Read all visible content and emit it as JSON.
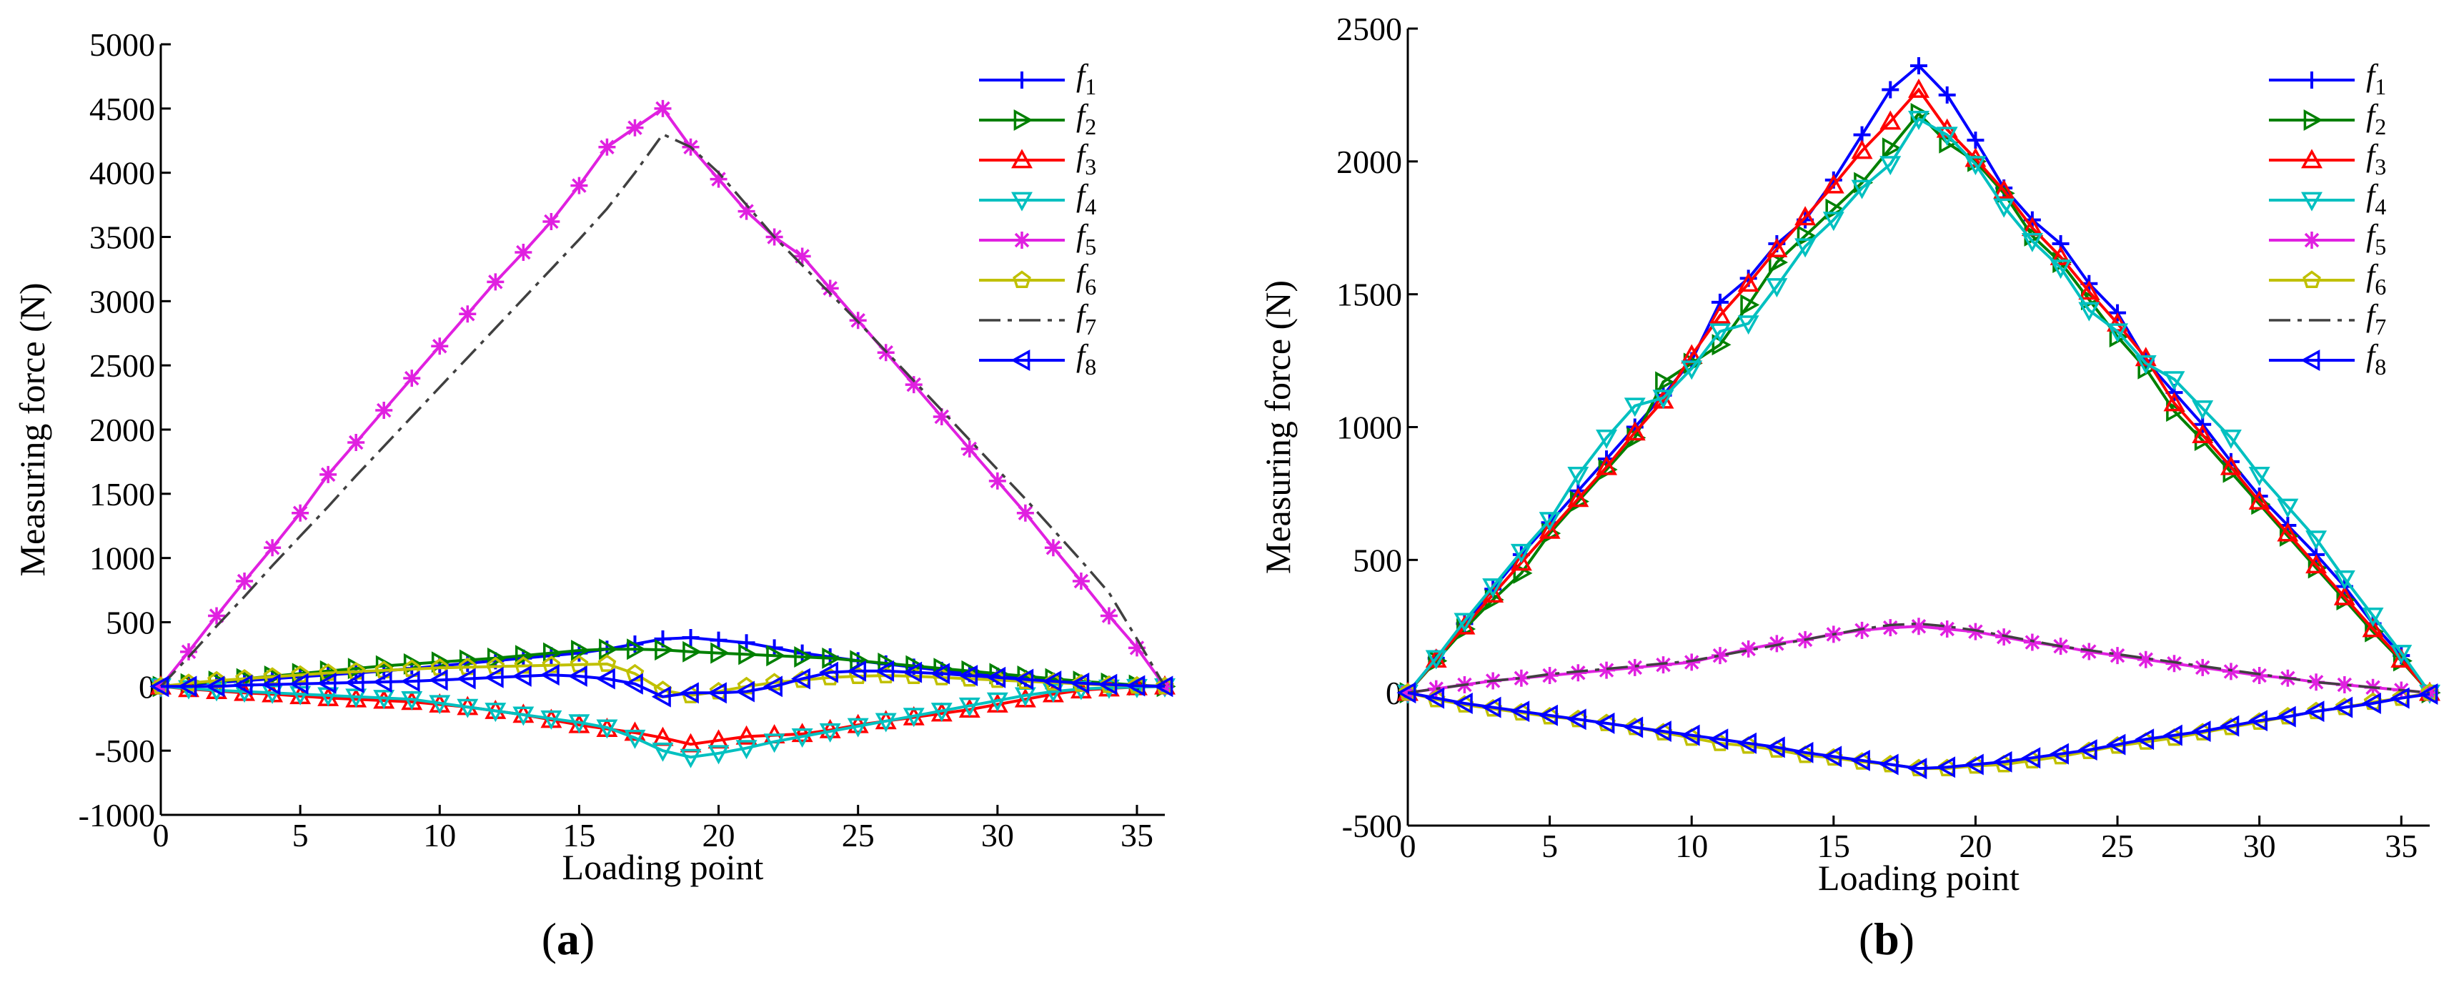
{
  "figure": {
    "captions": [
      "(a)",
      "(b)"
    ],
    "caption_parts": [
      {
        "open": "(",
        "letter": "a",
        "close": ")"
      },
      {
        "open": "(",
        "letter": "b",
        "close": ")"
      }
    ]
  },
  "colors": {
    "f1": "#0000ff",
    "f2": "#008000",
    "f3": "#ff0000",
    "f4": "#00c0c0",
    "f5": "#e020e0",
    "f6": "#c0c000",
    "f7": "#404040",
    "f8": "#0000ff"
  },
  "chart_data": [
    {
      "type": "line",
      "panel": "a",
      "title": "",
      "xlabel": "Loading point",
      "ylabel": "Measuring force  (N)",
      "xlim": [
        0,
        36
      ],
      "ylim": [
        -1000,
        5000
      ],
      "xticks": [
        0,
        5,
        10,
        15,
        20,
        25,
        30,
        35
      ],
      "yticks": [
        -1000,
        -500,
        0,
        500,
        1000,
        1500,
        2000,
        2500,
        3000,
        3500,
        4000,
        4500,
        5000
      ],
      "legend_position": "top-right",
      "x": [
        0,
        1,
        2,
        3,
        4,
        5,
        6,
        7,
        8,
        9,
        10,
        11,
        12,
        13,
        14,
        15,
        16,
        17,
        18,
        19,
        20,
        21,
        22,
        23,
        24,
        25,
        26,
        27,
        28,
        29,
        30,
        31,
        32,
        33,
        34,
        35,
        36
      ],
      "series": [
        {
          "key": "f1",
          "name": "f",
          "sub": "1",
          "marker": "plus",
          "style": "solid",
          "values": [
            0,
            15,
            30,
            45,
            60,
            75,
            90,
            105,
            120,
            140,
            160,
            180,
            200,
            220,
            240,
            260,
            290,
            330,
            370,
            380,
            360,
            340,
            300,
            260,
            230,
            200,
            175,
            150,
            125,
            100,
            80,
            60,
            40,
            25,
            15,
            5,
            0
          ]
        },
        {
          "key": "f2",
          "name": "f",
          "sub": "2",
          "marker": "tri-right",
          "style": "solid",
          "values": [
            0,
            20,
            40,
            60,
            80,
            100,
            120,
            140,
            160,
            175,
            190,
            205,
            220,
            240,
            260,
            280,
            290,
            290,
            285,
            270,
            260,
            250,
            240,
            230,
            220,
            200,
            180,
            160,
            140,
            120,
            100,
            80,
            60,
            40,
            25,
            10,
            0
          ]
        },
        {
          "key": "f3",
          "name": "f",
          "sub": "3",
          "marker": "tri-up",
          "style": "solid",
          "values": [
            0,
            -20,
            -35,
            -50,
            -60,
            -75,
            -90,
            -100,
            -110,
            -120,
            -140,
            -160,
            -190,
            -220,
            -260,
            -300,
            -330,
            -360,
            -400,
            -450,
            -420,
            -390,
            -380,
            -370,
            -340,
            -300,
            -270,
            -240,
            -210,
            -180,
            -140,
            -100,
            -60,
            -30,
            -15,
            -5,
            0
          ]
        },
        {
          "key": "f4",
          "name": "f",
          "sub": "4",
          "marker": "tri-down",
          "style": "solid",
          "values": [
            0,
            -15,
            -30,
            -40,
            -50,
            -60,
            -70,
            -80,
            -90,
            -100,
            -130,
            -160,
            -190,
            -220,
            -250,
            -280,
            -320,
            -400,
            -500,
            -550,
            -520,
            -480,
            -430,
            -390,
            -350,
            -310,
            -270,
            -230,
            -190,
            -150,
            -110,
            -70,
            -40,
            -20,
            -10,
            -5,
            0
          ]
        },
        {
          "key": "f5",
          "name": "f",
          "sub": "5",
          "marker": "asterisk",
          "style": "solid",
          "values": [
            0,
            270,
            550,
            820,
            1080,
            1350,
            1650,
            1900,
            2150,
            2400,
            2650,
            2900,
            3150,
            3380,
            3620,
            3900,
            4200,
            4350,
            4500,
            4200,
            3950,
            3700,
            3500,
            3350,
            3100,
            2850,
            2600,
            2350,
            2100,
            1850,
            1600,
            1350,
            1080,
            820,
            550,
            300,
            0
          ]
        },
        {
          "key": "f6",
          "name": "f",
          "sub": "6",
          "marker": "pentagon",
          "style": "solid",
          "values": [
            0,
            25,
            45,
            60,
            75,
            90,
            105,
            115,
            125,
            135,
            145,
            150,
            155,
            160,
            165,
            170,
            175,
            100,
            -30,
            -70,
            -40,
            0,
            30,
            50,
            70,
            80,
            85,
            80,
            70,
            60,
            50,
            40,
            30,
            20,
            10,
            5,
            0
          ]
        },
        {
          "key": "f7",
          "name": "f",
          "sub": "7",
          "marker": "none",
          "style": "dashdot",
          "values": [
            0,
            230,
            470,
            700,
            940,
            1170,
            1400,
            1640,
            1870,
            2100,
            2330,
            2560,
            2790,
            3020,
            3250,
            3480,
            3720,
            4000,
            4300,
            4200,
            4000,
            3750,
            3500,
            3280,
            3060,
            2840,
            2610,
            2380,
            2150,
            1920,
            1690,
            1460,
            1220,
            980,
            730,
            370,
            0
          ]
        },
        {
          "key": "f8",
          "name": "f",
          "sub": "8",
          "marker": "tri-left",
          "style": "solid",
          "values": [
            0,
            0,
            0,
            10,
            15,
            20,
            25,
            30,
            35,
            40,
            50,
            60,
            70,
            80,
            90,
            80,
            60,
            20,
            -80,
            -50,
            -50,
            -40,
            0,
            60,
            110,
            120,
            120,
            110,
            100,
            85,
            70,
            55,
            40,
            25,
            15,
            5,
            0
          ]
        }
      ]
    },
    {
      "type": "line",
      "panel": "b",
      "title": "",
      "xlabel": "Loading point",
      "ylabel": "Measuring force  (N)",
      "xlim": [
        0,
        36
      ],
      "ylim": [
        -500,
        2500
      ],
      "xticks": [
        0,
        5,
        10,
        15,
        20,
        25,
        30,
        35
      ],
      "yticks": [
        -500,
        0,
        500,
        1000,
        1500,
        2000,
        2500
      ],
      "legend_position": "top-right",
      "x": [
        0,
        1,
        2,
        3,
        4,
        5,
        6,
        7,
        8,
        9,
        10,
        11,
        12,
        13,
        14,
        15,
        16,
        17,
        18,
        19,
        20,
        21,
        22,
        23,
        24,
        25,
        26,
        27,
        28,
        29,
        30,
        31,
        32,
        33,
        34,
        35,
        36
      ],
      "series": [
        {
          "key": "f1",
          "name": "f",
          "sub": "1",
          "marker": "plus",
          "style": "solid",
          "values": [
            0,
            130,
            260,
            390,
            520,
            640,
            760,
            880,
            1000,
            1120,
            1250,
            1470,
            1560,
            1690,
            1780,
            1930,
            2100,
            2270,
            2360,
            2250,
            2080,
            1900,
            1780,
            1690,
            1540,
            1430,
            1250,
            1130,
            1010,
            870,
            740,
            630,
            520,
            400,
            260,
            140,
            0
          ]
        },
        {
          "key": "f2",
          "name": "f",
          "sub": "2",
          "marker": "tri-right",
          "style": "solid",
          "values": [
            0,
            120,
            240,
            350,
            450,
            600,
            720,
            840,
            960,
            1170,
            1240,
            1310,
            1460,
            1620,
            1720,
            1820,
            1920,
            2050,
            2180,
            2070,
            2000,
            1880,
            1720,
            1620,
            1480,
            1340,
            1220,
            1060,
            950,
            830,
            710,
            590,
            470,
            350,
            230,
            120,
            0
          ]
        },
        {
          "key": "f3",
          "name": "f",
          "sub": "3",
          "marker": "tri-up",
          "style": "solid",
          "values": [
            0,
            125,
            250,
            370,
            490,
            610,
            730,
            850,
            980,
            1100,
            1270,
            1420,
            1540,
            1670,
            1790,
            1910,
            2040,
            2150,
            2270,
            2120,
            2010,
            1890,
            1750,
            1640,
            1510,
            1390,
            1260,
            1090,
            970,
            850,
            720,
            600,
            480,
            360,
            240,
            125,
            0
          ]
        },
        {
          "key": "f4",
          "name": "f",
          "sub": "4",
          "marker": "tri-down",
          "style": "solid",
          "values": [
            0,
            130,
            270,
            400,
            530,
            650,
            820,
            960,
            1080,
            1110,
            1220,
            1360,
            1390,
            1530,
            1680,
            1780,
            1900,
            1990,
            2160,
            2100,
            1990,
            1830,
            1700,
            1600,
            1440,
            1360,
            1240,
            1180,
            1070,
            960,
            820,
            700,
            580,
            430,
            290,
            150,
            0
          ]
        },
        {
          "key": "f5",
          "name": "f",
          "sub": "5",
          "marker": "asterisk",
          "style": "solid",
          "values": [
            0,
            15,
            30,
            45,
            55,
            65,
            75,
            85,
            95,
            105,
            115,
            140,
            165,
            185,
            200,
            220,
            235,
            245,
            250,
            240,
            230,
            210,
            190,
            175,
            155,
            140,
            125,
            110,
            95,
            80,
            65,
            55,
            40,
            30,
            20,
            10,
            0
          ]
        },
        {
          "key": "f6",
          "name": "f",
          "sub": "6",
          "marker": "pentagon",
          "style": "solid",
          "values": [
            0,
            -25,
            -45,
            -60,
            -75,
            -90,
            -100,
            -115,
            -130,
            -150,
            -170,
            -190,
            -200,
            -215,
            -235,
            -245,
            -260,
            -270,
            -285,
            -285,
            -275,
            -270,
            -255,
            -240,
            -220,
            -200,
            -185,
            -170,
            -150,
            -130,
            -110,
            -90,
            -70,
            -55,
            -35,
            -20,
            0
          ]
        },
        {
          "key": "f7",
          "name": "f",
          "sub": "7",
          "marker": "none",
          "style": "dashdot",
          "values": [
            0,
            15,
            30,
            45,
            55,
            70,
            80,
            90,
            100,
            110,
            120,
            140,
            160,
            180,
            200,
            220,
            240,
            255,
            260,
            250,
            235,
            215,
            195,
            175,
            160,
            145,
            130,
            115,
            100,
            85,
            70,
            55,
            40,
            30,
            20,
            10,
            0
          ]
        },
        {
          "key": "f8",
          "name": "f",
          "sub": "8",
          "marker": "tri-left",
          "style": "solid",
          "values": [
            0,
            -20,
            -40,
            -55,
            -70,
            -85,
            -100,
            -115,
            -130,
            -145,
            -160,
            -175,
            -190,
            -205,
            -225,
            -240,
            -255,
            -270,
            -285,
            -280,
            -270,
            -260,
            -245,
            -230,
            -215,
            -195,
            -175,
            -160,
            -145,
            -125,
            -105,
            -90,
            -70,
            -55,
            -40,
            -20,
            -5
          ]
        }
      ]
    }
  ]
}
